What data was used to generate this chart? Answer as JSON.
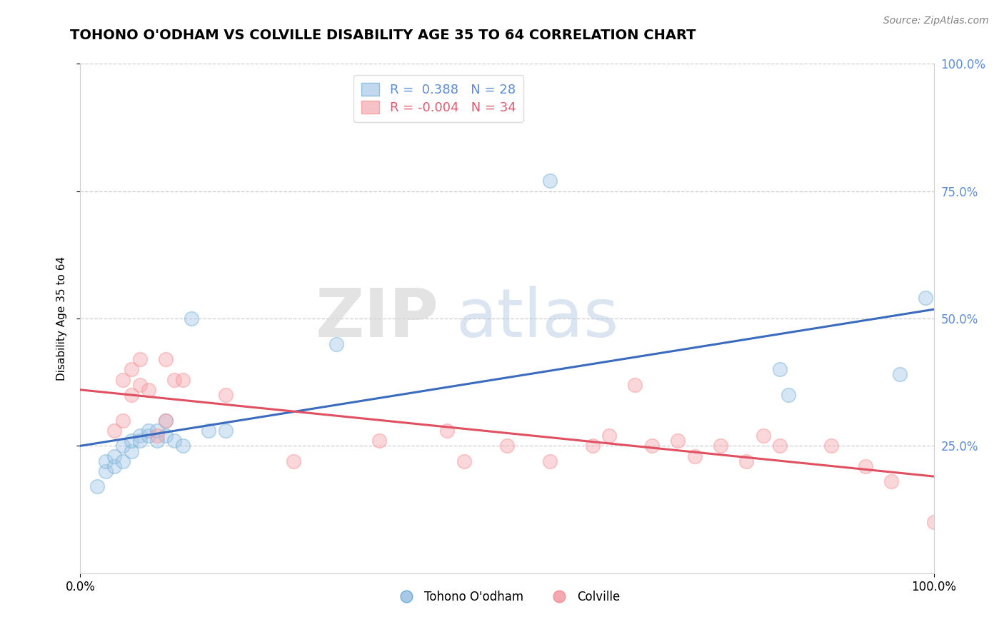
{
  "title": "TOHONO O'ODHAM VS COLVILLE DISABILITY AGE 35 TO 64 CORRELATION CHART",
  "source": "Source: ZipAtlas.com",
  "ylabel": "Disability Age 35 to 64",
  "xlim": [
    0.0,
    1.0
  ],
  "ylim": [
    0.0,
    1.0
  ],
  "ytick_vals": [
    0.25,
    0.5,
    0.75,
    1.0
  ],
  "ytick_labels": [
    "25.0%",
    "50.0%",
    "75.0%",
    "100.0%"
  ],
  "blue_color": "#a8c8e8",
  "pink_color": "#f4a8b0",
  "blue_edge_color": "#6baed6",
  "pink_edge_color": "#fc8d8d",
  "blue_line_color": "#3a6bbf",
  "pink_line_color": "#e05060",
  "tick_color": "#5b8dd9",
  "watermark_zip": "ZIP",
  "watermark_atlas": "atlas",
  "blue_scatter_x": [
    0.02,
    0.03,
    0.03,
    0.04,
    0.04,
    0.05,
    0.05,
    0.06,
    0.06,
    0.07,
    0.07,
    0.08,
    0.08,
    0.09,
    0.09,
    0.1,
    0.1,
    0.11,
    0.12,
    0.13,
    0.15,
    0.17,
    0.3,
    0.55,
    0.82,
    0.83,
    0.96,
    0.99
  ],
  "blue_scatter_y": [
    0.17,
    0.2,
    0.22,
    0.21,
    0.23,
    0.22,
    0.25,
    0.24,
    0.26,
    0.27,
    0.26,
    0.27,
    0.28,
    0.26,
    0.28,
    0.27,
    0.3,
    0.26,
    0.25,
    0.5,
    0.28,
    0.28,
    0.45,
    0.77,
    0.4,
    0.35,
    0.39,
    0.54
  ],
  "pink_scatter_x": [
    0.04,
    0.05,
    0.05,
    0.06,
    0.06,
    0.07,
    0.07,
    0.08,
    0.09,
    0.1,
    0.1,
    0.11,
    0.12,
    0.17,
    0.25,
    0.35,
    0.43,
    0.45,
    0.5,
    0.55,
    0.6,
    0.62,
    0.65,
    0.67,
    0.7,
    0.72,
    0.75,
    0.78,
    0.8,
    0.82,
    0.88,
    0.92,
    0.95,
    1.0
  ],
  "pink_scatter_y": [
    0.28,
    0.38,
    0.3,
    0.35,
    0.4,
    0.42,
    0.37,
    0.36,
    0.27,
    0.3,
    0.42,
    0.38,
    0.38,
    0.35,
    0.22,
    0.26,
    0.28,
    0.22,
    0.25,
    0.22,
    0.25,
    0.27,
    0.37,
    0.25,
    0.26,
    0.23,
    0.25,
    0.22,
    0.27,
    0.25,
    0.25,
    0.21,
    0.18,
    0.1
  ],
  "marker_size": 200,
  "alpha": 0.45,
  "title_fontsize": 14,
  "axis_fontsize": 11,
  "tick_fontsize": 12
}
